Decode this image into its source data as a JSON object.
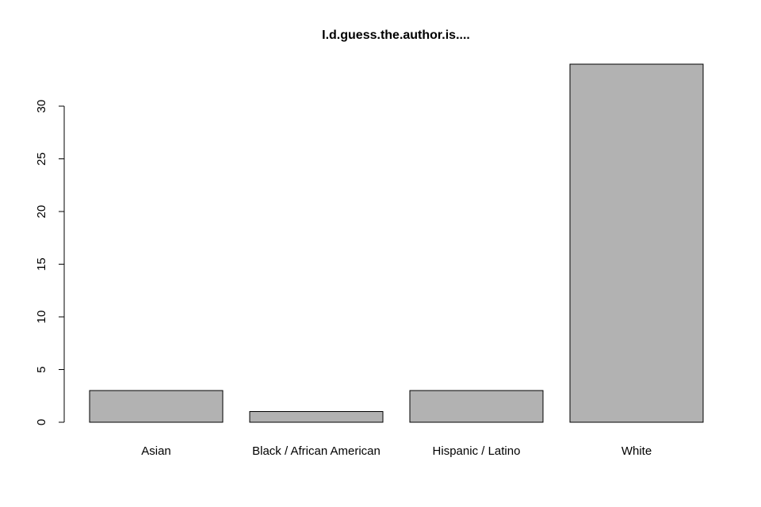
{
  "chart_data": {
    "type": "bar",
    "title": "I.d.guess.the.author.is....",
    "xlabel": "",
    "ylabel": "",
    "categories": [
      "Asian",
      "Black / African American",
      "Hispanic / Latino",
      "White"
    ],
    "values": [
      3,
      1,
      3,
      34
    ],
    "ylim": [
      0,
      34
    ],
    "yticks": [
      0,
      5,
      10,
      15,
      20,
      25,
      30
    ],
    "grid": false,
    "legend": "none",
    "bar_color": "#b2b2b2",
    "border_color": "#000000"
  }
}
